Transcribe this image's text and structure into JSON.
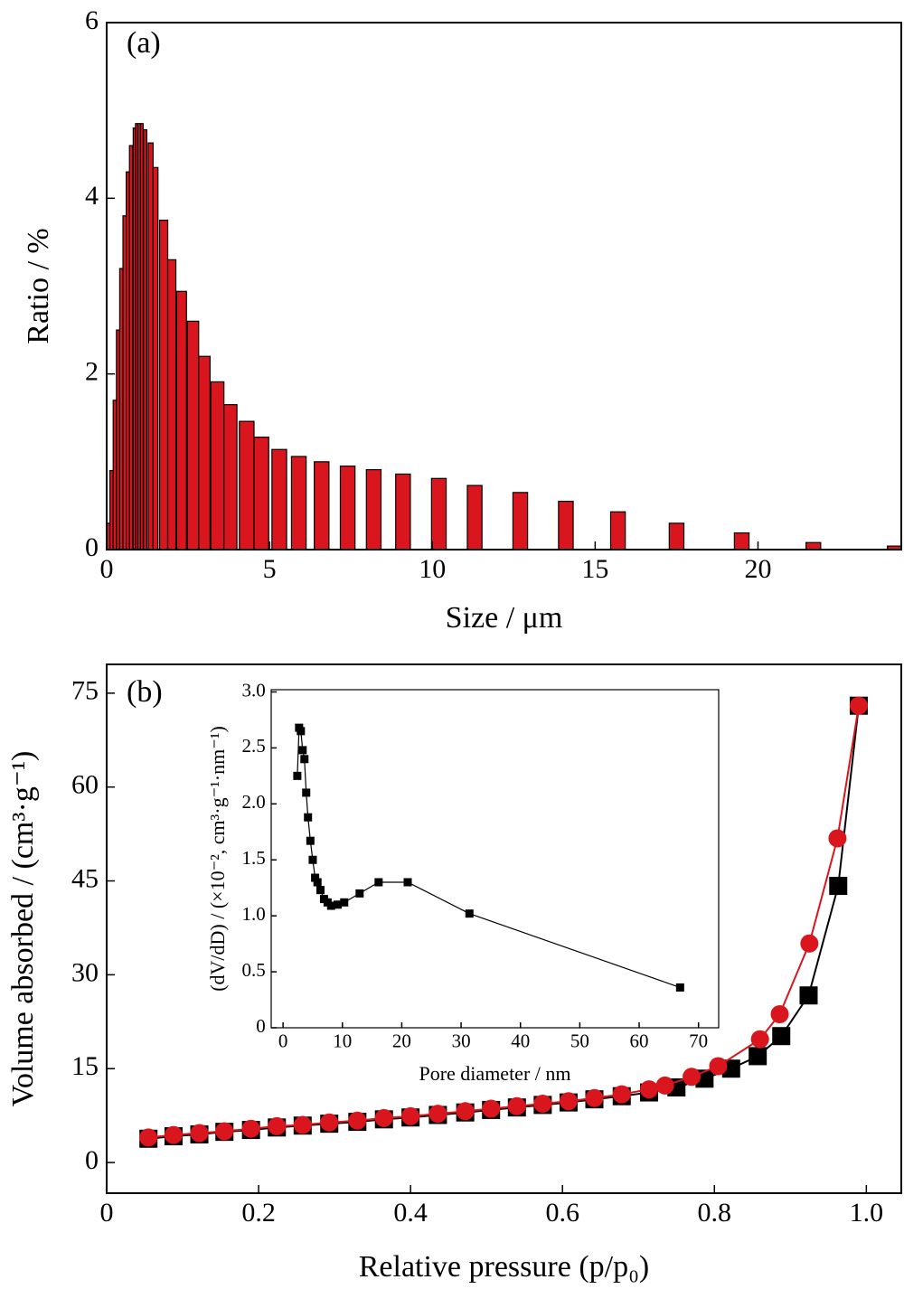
{
  "chart_data": [
    {
      "type": "bar",
      "annotation": "(a)",
      "x_label": "Size / μm",
      "y_label": "Ratio / %",
      "color": "#d9151e",
      "edge_color": "#000000",
      "x": [
        0.05,
        0.15,
        0.25,
        0.35,
        0.45,
        0.55,
        0.65,
        0.75,
        0.85,
        0.92,
        1.0,
        1.08,
        1.18,
        1.35,
        1.5,
        1.75,
        2.0,
        2.3,
        2.65,
        3.0,
        3.4,
        3.8,
        4.3,
        4.75,
        5.3,
        5.9,
        6.6,
        7.4,
        8.2,
        9.1,
        10.2,
        11.3,
        12.7,
        14.1,
        15.7,
        17.5,
        19.5,
        21.7,
        24.2
      ],
      "values": [
        0.3,
        0.9,
        1.7,
        2.5,
        3.2,
        3.8,
        4.3,
        4.6,
        4.8,
        4.85,
        4.85,
        4.85,
        4.78,
        4.63,
        4.35,
        3.75,
        3.3,
        2.94,
        2.6,
        2.2,
        1.91,
        1.65,
        1.46,
        1.28,
        1.14,
        1.06,
        1.0,
        0.95,
        0.91,
        0.86,
        0.81,
        0.73,
        0.65,
        0.55,
        0.43,
        0.3,
        0.19,
        0.08,
        0.04
      ],
      "xlim": [
        0,
        24.4
      ],
      "xticks": [
        0,
        5,
        10,
        15,
        20
      ],
      "ylim": [
        0,
        6
      ],
      "yticks": [
        0,
        2,
        4,
        6
      ]
    },
    {
      "type": "line",
      "annotation": "(b)",
      "x_label": "Relative pressure (p/p₀)",
      "y_label": "Volume absorbed / (cm³·g⁻¹)",
      "series": [
        {
          "color": "#000000",
          "marker": "square",
          "x": [
            0.055,
            0.088,
            0.122,
            0.155,
            0.19,
            0.224,
            0.258,
            0.293,
            0.33,
            0.365,
            0.4,
            0.436,
            0.472,
            0.506,
            0.54,
            0.574,
            0.608,
            0.642,
            0.678,
            0.714,
            0.75,
            0.787,
            0.822,
            0.857,
            0.888,
            0.924,
            0.963,
            0.99
          ],
          "values": [
            3.8,
            4.2,
            4.5,
            4.9,
            5.2,
            5.6,
            5.9,
            6.2,
            6.5,
            6.9,
            7.2,
            7.6,
            8.0,
            8.4,
            8.8,
            9.2,
            9.6,
            10.1,
            10.6,
            11.2,
            12.0,
            13.4,
            15.0,
            17.0,
            20.2,
            26.7,
            44.2,
            73.0
          ]
        },
        {
          "color": "#d9151e",
          "marker": "circle",
          "x": [
            0.055,
            0.088,
            0.122,
            0.155,
            0.19,
            0.224,
            0.258,
            0.293,
            0.33,
            0.365,
            0.4,
            0.436,
            0.472,
            0.506,
            0.54,
            0.574,
            0.608,
            0.642,
            0.678,
            0.714,
            0.735,
            0.77,
            0.805,
            0.86,
            0.886,
            0.925,
            0.962,
            0.99
          ],
          "values": [
            4.0,
            4.4,
            4.7,
            5.0,
            5.4,
            5.8,
            6.0,
            6.4,
            6.7,
            7.1,
            7.4,
            7.8,
            8.2,
            8.6,
            9.0,
            9.4,
            9.8,
            10.3,
            10.9,
            11.7,
            12.3,
            13.7,
            15.4,
            19.7,
            23.7,
            35.0,
            51.8,
            73.0
          ]
        }
      ],
      "xlim": [
        0,
        1.046
      ],
      "xticks": [
        0,
        0.2,
        0.4,
        0.6,
        0.8,
        {
          "value": 1,
          "label": "1.0"
        }
      ],
      "ylim": [
        -4.9,
        79.6
      ],
      "yticks": [
        0,
        15,
        30,
        45,
        60,
        75
      ]
    },
    {
      "type": "line",
      "x_label": "Pore diameter / nm",
      "y_label": "(dV/dD) / (×10⁻², cm³·g⁻¹·nm⁻¹)",
      "series": [
        {
          "color": "#000000",
          "marker": "square",
          "x": [
            2.4,
            2.7,
            3.0,
            3.3,
            3.6,
            3.9,
            4.2,
            4.6,
            5.0,
            5.4,
            5.8,
            6.3,
            6.9,
            7.5,
            8.1,
            9.2,
            10.3,
            12.9,
            16.1,
            21.0,
            31.4,
            66.9
          ],
          "values": [
            2.25,
            2.68,
            2.65,
            2.48,
            2.4,
            2.1,
            1.88,
            1.67,
            1.5,
            1.34,
            1.3,
            1.23,
            1.15,
            1.12,
            1.09,
            1.1,
            1.12,
            1.2,
            1.3,
            1.3,
            1.02,
            0.36
          ]
        }
      ],
      "xlim": [
        -2,
        73.4
      ],
      "xticks": [
        0,
        10,
        20,
        30,
        40,
        50,
        60,
        70
      ],
      "ylim": [
        0,
        3.02
      ],
      "yticks": [
        0,
        0.5,
        {
          "value": 1,
          "label": "1.0"
        },
        1.5,
        {
          "value": 2,
          "label": "2.0"
        },
        2.5,
        {
          "value": 3,
          "label": "3.0"
        }
      ]
    }
  ]
}
